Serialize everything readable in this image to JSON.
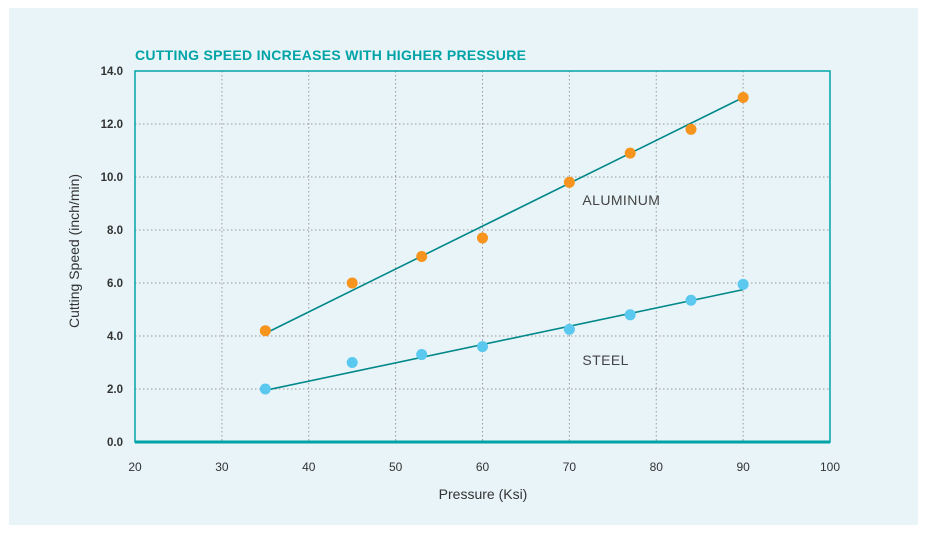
{
  "chart_data": {
    "type": "scatter",
    "title": "CUTTING SPEED INCREASES WITH HIGHER PRESSURE",
    "xlabel": "Pressure (Ksi)",
    "ylabel": "Cutting Speed (inch/min)",
    "xlim": [
      20,
      100
    ],
    "ylim": [
      0,
      14
    ],
    "xticks": [
      "20",
      "30",
      "40",
      "50",
      "60",
      "70",
      "80",
      "90",
      "100"
    ],
    "yticks": [
      "0.0",
      "2.0",
      "4.0",
      "6.0",
      "8.0",
      "10.0",
      "12.0",
      "14.0"
    ],
    "grid": true,
    "series": [
      {
        "name": "ALUMINUM",
        "color": "#f7941d",
        "points": [
          {
            "x": 35,
            "y": 4.2
          },
          {
            "x": 45,
            "y": 6.0
          },
          {
            "x": 53,
            "y": 7.0
          },
          {
            "x": 60,
            "y": 7.7
          },
          {
            "x": 70,
            "y": 9.8
          },
          {
            "x": 77,
            "y": 10.9
          },
          {
            "x": 84,
            "y": 11.8
          },
          {
            "x": 90,
            "y": 13.0
          }
        ],
        "trend": [
          {
            "x": 35,
            "y": 4.1
          },
          {
            "x": 90,
            "y": 13.0
          }
        ]
      },
      {
        "name": "STEEL",
        "color": "#5bc8ef",
        "points": [
          {
            "x": 35,
            "y": 2.0
          },
          {
            "x": 45,
            "y": 3.0
          },
          {
            "x": 53,
            "y": 3.3
          },
          {
            "x": 60,
            "y": 3.6
          },
          {
            "x": 70,
            "y": 4.25
          },
          {
            "x": 77,
            "y": 4.8
          },
          {
            "x": 84,
            "y": 5.35
          },
          {
            "x": 90,
            "y": 5.95
          }
        ],
        "trend": [
          {
            "x": 35,
            "y": 1.95
          },
          {
            "x": 90,
            "y": 5.75
          }
        ]
      }
    ],
    "colors": {
      "frame": "#00a3a6",
      "line": "#00888a",
      "grid": "#9a9a9a"
    }
  }
}
